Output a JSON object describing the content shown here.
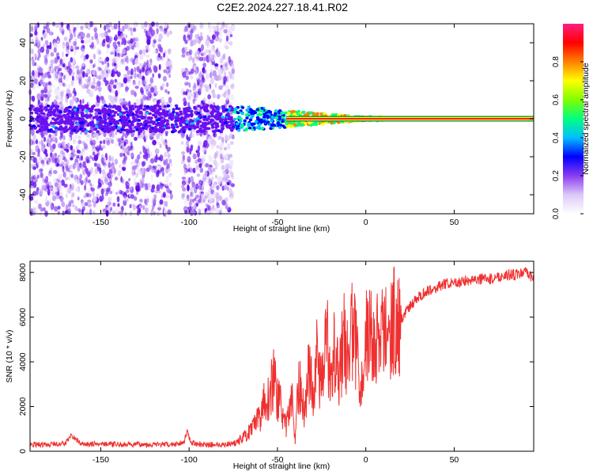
{
  "title": "C2E2.2024.227.18.41.R02",
  "chart_data": [
    {
      "type": "heatmap",
      "xlabel": "Height of straight line (km)",
      "ylabel": "Frequency (Hz)",
      "xlim": [
        -190,
        95
      ],
      "ylim": [
        -50,
        50
      ],
      "xticks": [
        -150,
        -100,
        -50,
        0,
        50
      ],
      "yticks": [
        -40,
        -20,
        0,
        20,
        40
      ],
      "colorbar": {
        "label": "Normalized spectral amplitude",
        "range": [
          0.0,
          1.0
        ],
        "ticks": [
          0.0,
          0.2,
          0.4,
          0.6,
          0.8
        ],
        "colors": [
          "#ffffff",
          "#dcc8f8",
          "#8a3cf0",
          "#0000ff",
          "#00bfff",
          "#00ff7f",
          "#7fff00",
          "#ffff00",
          "#ff8000",
          "#ff0000",
          "#ff1e80"
        ]
      },
      "noise_region_km": [
        -190,
        -75
      ],
      "signal_line_from_km": -45,
      "signal_line_to_km": 95
    },
    {
      "type": "line",
      "xlabel": "Height of straight line (km)",
      "ylabel": "SNR (10 * v/v)",
      "xlim": [
        -190,
        95
      ],
      "ylim": [
        0,
        8500
      ],
      "xticks": [
        -150,
        -100,
        -50,
        0,
        50
      ],
      "yticks": [
        0,
        2000,
        4000,
        6000,
        8000
      ],
      "color": "#ef3030",
      "series": [
        {
          "name": "SNR",
          "x": [
            -190,
            -180,
            -170,
            -167,
            -160,
            -150,
            -140,
            -130,
            -120,
            -110,
            -103,
            -101,
            -99,
            -95,
            -90,
            -85,
            -80,
            -75,
            -72,
            -70,
            -65,
            -60,
            -58,
            -55,
            -52,
            -50,
            -48,
            -45,
            -42,
            -40,
            -38,
            -35,
            -32,
            -30,
            -28,
            -25,
            -22,
            -20,
            -18,
            -15,
            -12,
            -10,
            -8,
            -5,
            -2,
            0,
            5,
            10,
            15,
            20,
            25,
            30,
            35,
            40,
            45,
            50,
            55,
            60,
            65,
            70,
            75,
            80,
            85,
            90,
            95
          ],
          "y": [
            300,
            300,
            350,
            700,
            300,
            350,
            300,
            300,
            300,
            300,
            400,
            900,
            400,
            300,
            300,
            300,
            300,
            350,
            450,
            600,
            900,
            1500,
            2200,
            2400,
            3300,
            2400,
            2000,
            1000,
            2600,
            500,
            3200,
            1800,
            3800,
            2500,
            4200,
            3000,
            5000,
            3500,
            4800,
            3600,
            5200,
            3800,
            5500,
            4500,
            3000,
            5200,
            5000,
            5200,
            5800,
            5900,
            6500,
            6900,
            7200,
            7300,
            7500,
            7500,
            7600,
            7700,
            7700,
            7700,
            7800,
            7900,
            7900,
            8000,
            7700
          ]
        }
      ]
    }
  ]
}
